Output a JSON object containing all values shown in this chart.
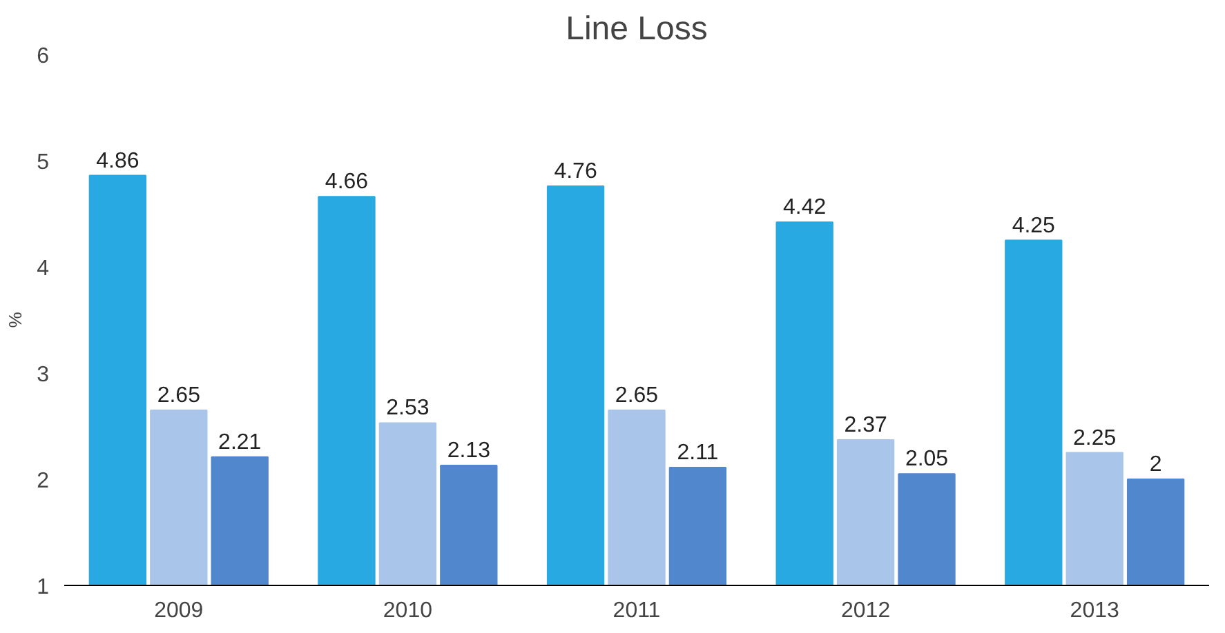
{
  "chart_data": {
    "type": "bar",
    "title": "Line Loss",
    "ylabel": "%",
    "categories": [
      "2009",
      "2010",
      "2011",
      "2012",
      "2013"
    ],
    "series": [
      {
        "color": "#29a9e1",
        "values": [
          4.86,
          4.66,
          4.76,
          4.42,
          4.25
        ]
      },
      {
        "color": "#a9c6ea",
        "values": [
          2.65,
          2.53,
          2.65,
          2.37,
          2.25
        ]
      },
      {
        "color": "#5187cc",
        "values": [
          2.21,
          2.13,
          2.11,
          2.05,
          2
        ]
      }
    ],
    "ylim": [
      1,
      6
    ],
    "yticks": [
      1,
      2,
      3,
      4,
      5,
      6
    ],
    "grid": false,
    "data_labels": true
  }
}
